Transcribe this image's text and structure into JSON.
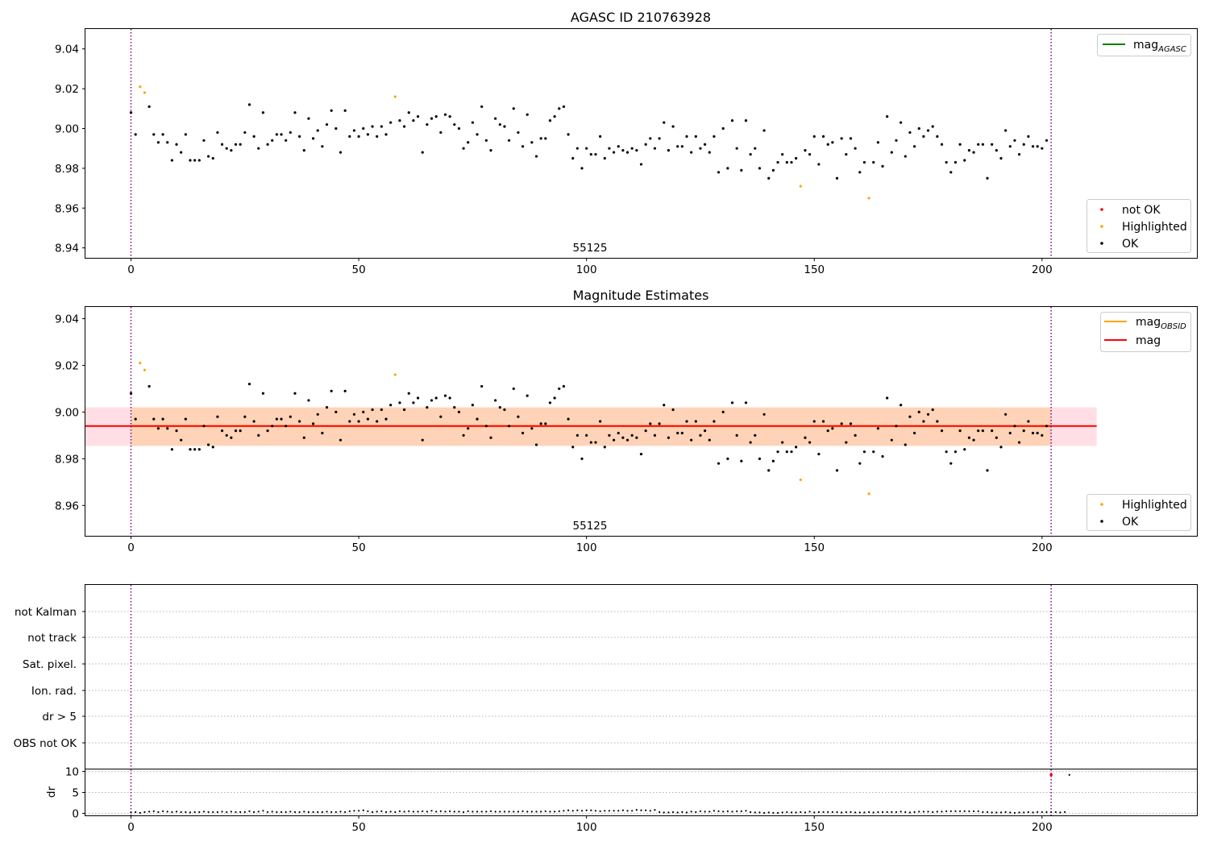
{
  "figure_title": "AGASC ID 210763928",
  "chart_data": [
    {
      "type": "scatter",
      "title": "AGASC ID 210763928",
      "obsid_label": "55125",
      "xlim": [
        -10,
        234
      ],
      "ylim": [
        8.935,
        9.05
      ],
      "xticks": [
        0,
        50,
        100,
        150,
        200
      ],
      "yticks": [
        "8.94",
        "8.96",
        "8.98",
        "9.00",
        "9.02",
        "9.04"
      ],
      "vlines": [
        0,
        202
      ],
      "legend_lines": [
        {
          "name": "mag_AGASC",
          "base": "mag",
          "sub": "AGASC",
          "color": "#008000"
        }
      ],
      "legend_points": [
        {
          "name": "not OK",
          "color": "#ff0000"
        },
        {
          "name": "Highlighted",
          "color": "#ffa500"
        },
        {
          "name": "OK",
          "color": "#000000"
        }
      ],
      "series_ok_color": "#000000",
      "series_highlight_color": "#ffa500"
    },
    {
      "type": "scatter",
      "title": "Magnitude Estimates",
      "obsid_label": "55125",
      "xlim": [
        -10,
        234
      ],
      "ylim": [
        8.947,
        9.045
      ],
      "xticks": [
        0,
        50,
        100,
        150,
        200
      ],
      "yticks": [
        "8.96",
        "8.98",
        "9.00",
        "9.02",
        "9.04"
      ],
      "vlines": [
        0,
        202
      ],
      "mag": 8.994,
      "mag_band": [
        8.9855,
        9.002
      ],
      "mag_band_x": [
        -10,
        212
      ],
      "mag_obsid_band_x": [
        0,
        202
      ],
      "legend_lines": [
        {
          "name": "mag_OBSID",
          "base": "mag",
          "sub": "OBSID",
          "color": "#ffa500"
        },
        {
          "name": "mag",
          "base": "mag",
          "sub": "",
          "color": "#ff0000"
        }
      ],
      "legend_points": [
        {
          "name": "Highlighted",
          "color": "#ffa500"
        },
        {
          "name": "OK",
          "color": "#000000"
        }
      ]
    },
    {
      "type": "scatter",
      "title": "",
      "ylabels": [
        "not Kalman",
        "not track",
        "Sat. pixel.",
        "Ion. rad.",
        "dr > 5",
        "OBS not OK"
      ],
      "xlim": [
        -10,
        234
      ],
      "vlines": [
        0,
        202
      ]
    },
    {
      "type": "scatter",
      "ylabel": "dr",
      "ylim": [
        -0.5,
        10.5
      ],
      "yticks": [
        "0",
        "5",
        "10"
      ],
      "xticks": [
        0,
        50,
        100,
        150,
        200
      ],
      "xlim": [
        -10,
        234
      ],
      "vlines": [
        0,
        202
      ],
      "dr_values": [
        0.2,
        0.3,
        0.1,
        0.3,
        0.4,
        0.5,
        0.3,
        0.5,
        0.4,
        0.3,
        0.4,
        0.3,
        0.3,
        0.2,
        0.3,
        0.3,
        0.4,
        0.3,
        0.3,
        0.3,
        0.4,
        0.3,
        0.4,
        0.3,
        0.3,
        0.3,
        0.5,
        0.3,
        0.4,
        0.6,
        0.3,
        0.4,
        0.3,
        0.3,
        0.3,
        0.4,
        0.3,
        0.3,
        0.4,
        0.3,
        0.3,
        0.3,
        0.3,
        0.4,
        0.3,
        0.3,
        0.4,
        0.3,
        0.5,
        0.6,
        0.6,
        0.7,
        0.5,
        0.3,
        0.4,
        0.5,
        0.3,
        0.4,
        0.3,
        0.5,
        0.4,
        0.5,
        0.4,
        0.4,
        0.5,
        0.4,
        0.6,
        0.4,
        0.5,
        0.4,
        0.5,
        0.4,
        0.4,
        0.3,
        0.5,
        0.4,
        0.4,
        0.4,
        0.4,
        0.5,
        0.4,
        0.4,
        0.4,
        0.4,
        0.4,
        0.4,
        0.5,
        0.4,
        0.4,
        0.4,
        0.4,
        0.5,
        0.4,
        0.4,
        0.5,
        0.6,
        0.7,
        0.6,
        0.7,
        0.6,
        0.7,
        0.7,
        0.6,
        0.5,
        0.6,
        0.6,
        0.6,
        0.6,
        0.7,
        0.6,
        0.6,
        0.8,
        0.7,
        0.7,
        0.6,
        0.8,
        0.3,
        0.2,
        0.2,
        0.3,
        0.2,
        0.3,
        0.2,
        0.4,
        0.3,
        0.5,
        0.4,
        0.4,
        0.6,
        0.5,
        0.4,
        0.5,
        0.4,
        0.5,
        0.5,
        0.6,
        0.3,
        0.2,
        0.2,
        0.1,
        0.2,
        0.1,
        0.1,
        0.2,
        0.3,
        0.2,
        0.2,
        0.3,
        0.2,
        0.4,
        0.2,
        0.3,
        0.3,
        0.3,
        0.3,
        0.3,
        0.2,
        0.3,
        0.3,
        0.2,
        0.2,
        0.2,
        0.3,
        0.2,
        0.3,
        0.3,
        0.3,
        0.3,
        0.3,
        0.4,
        0.3,
        0.2,
        0.3,
        0.4,
        0.4,
        0.4,
        0.3,
        0.4,
        0.4,
        0.5,
        0.5,
        0.5,
        0.5,
        0.5,
        0.5,
        0.5,
        0.5,
        0.3,
        0.3,
        0.2,
        0.2,
        0.2,
        0.3,
        0.2,
        0.1,
        0.2,
        0.2,
        0.3,
        0.2,
        0.3,
        0.3,
        0.3,
        0.3,
        0.3,
        0.2,
        0.3,
        9.2
      ],
      "dr_highlight": [
        {
          "x": 202,
          "y": 9.2,
          "color": "#ff0000"
        }
      ]
    }
  ],
  "mag_values": [
    9.008,
    8.997,
    9.021,
    9.018,
    9.011,
    8.997,
    8.993,
    8.997,
    8.993,
    8.984,
    8.992,
    8.988,
    8.997,
    8.984,
    8.984,
    8.984,
    8.994,
    8.986,
    8.985,
    8.998,
    8.992,
    8.99,
    8.989,
    8.992,
    8.992,
    8.998,
    9.012,
    8.996,
    8.99,
    9.008,
    8.992,
    8.994,
    8.997,
    8.997,
    8.994,
    8.998,
    9.008,
    8.996,
    8.989,
    9.005,
    8.995,
    8.999,
    8.991,
    9.002,
    9.009,
    9.0,
    8.988,
    9.009,
    8.996,
    8.999,
    8.996,
    9.0,
    8.997,
    9.001,
    8.996,
    9.001,
    8.997,
    9.003,
    9.016,
    9.004,
    9.001,
    9.008,
    9.004,
    9.006,
    8.988,
    9.002,
    9.005,
    9.006,
    8.998,
    9.007,
    9.006,
    9.002,
    9.0,
    8.99,
    8.993,
    9.003,
    8.997,
    9.011,
    8.994,
    8.989,
    9.005,
    9.002,
    9.001,
    8.994,
    9.01,
    8.998,
    8.991,
    9.007,
    8.993,
    8.986,
    8.995,
    8.995,
    9.004,
    9.006,
    9.01,
    9.011,
    8.997,
    8.985,
    8.99,
    8.98,
    8.99,
    8.987,
    8.987,
    8.996,
    8.985,
    8.99,
    8.988,
    8.991,
    8.989,
    8.988,
    8.99,
    8.989,
    8.982,
    8.992,
    8.995,
    8.99,
    8.995,
    9.003,
    8.989,
    9.001,
    8.991,
    8.991,
    8.996,
    8.988,
    8.996,
    8.99,
    8.992,
    8.988,
    8.996,
    8.978,
    9.0,
    8.98,
    9.004,
    8.99,
    8.979,
    9.004,
    8.987,
    8.99,
    8.98,
    8.999,
    8.975,
    8.979,
    8.983,
    8.987,
    8.983,
    8.983,
    8.985,
    8.971,
    8.989,
    8.987,
    8.996,
    8.982,
    8.996,
    8.992,
    8.993,
    8.975,
    8.995,
    8.987,
    8.995,
    8.99,
    8.978,
    8.983,
    8.965,
    8.983,
    8.993,
    8.981,
    9.006,
    8.988,
    8.994,
    9.003,
    8.986,
    8.998,
    8.991,
    9.0,
    8.996,
    8.999,
    9.001,
    8.996,
    8.992,
    8.983,
    8.978,
    8.983,
    8.992,
    8.984,
    8.989,
    8.988,
    8.992,
    8.992,
    8.975,
    8.992,
    8.989,
    8.985,
    8.999,
    8.991,
    8.994,
    8.987,
    8.992,
    8.996,
    8.991,
    8.991,
    8.99,
    8.994
  ],
  "highlighted_indices": [
    2,
    3,
    58,
    147,
    162
  ]
}
